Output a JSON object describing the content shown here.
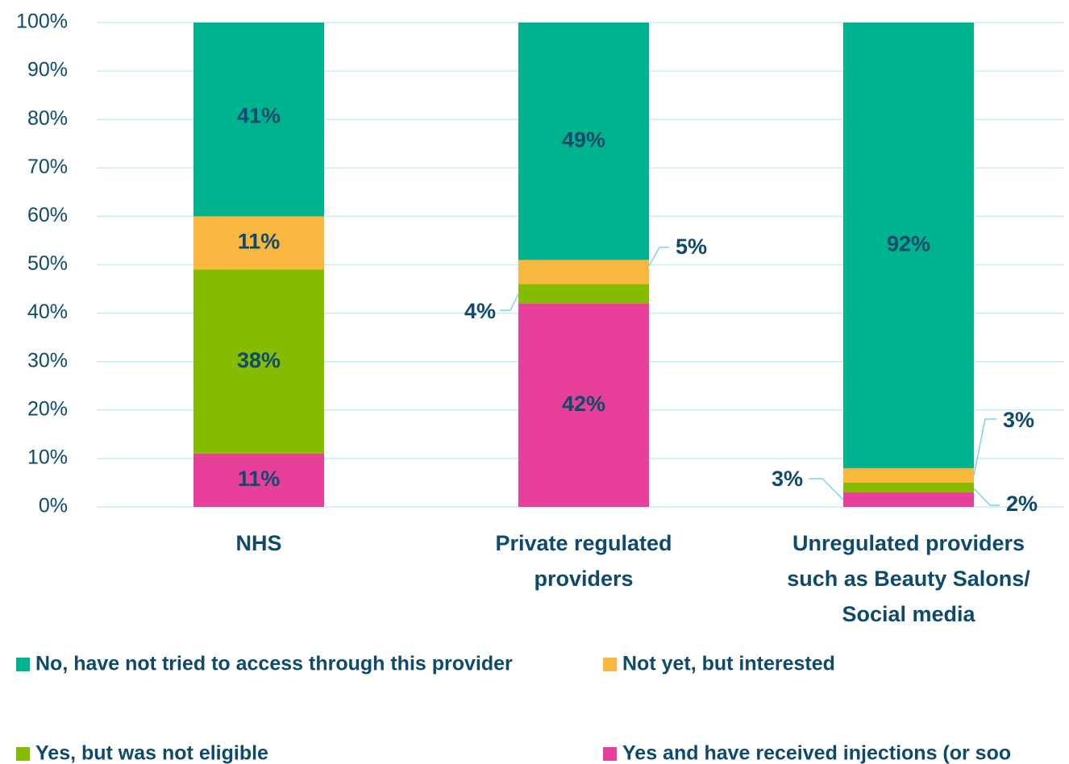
{
  "chart_data": {
    "type": "stacked_bar",
    "categories": [
      [
        "NHS"
      ],
      [
        "Private regulated",
        "providers"
      ],
      [
        "Unregulated providers",
        "such as Beauty Salons/",
        "Social media"
      ]
    ],
    "series": [
      {
        "name": "Yes and have received injections (or soo",
        "color": "#e8409a",
        "values": [
          11,
          42,
          3
        ],
        "value_labels": [
          "11%",
          "42%",
          "3%"
        ]
      },
      {
        "name": "Yes, but was not eligible",
        "color": "#85bc00",
        "values": [
          38,
          4,
          2
        ],
        "value_labels": [
          "38%",
          "4%",
          "2%"
        ]
      },
      {
        "name": "Not yet, but interested",
        "color": "#f9b73f",
        "values": [
          11,
          5,
          3
        ],
        "value_labels": [
          "11%",
          "5%",
          "3%"
        ]
      },
      {
        "name": "No, have not tried to access through this provider",
        "color": "#00b38f",
        "values": [
          41,
          49,
          92
        ],
        "value_labels": [
          "41%",
          "49%",
          "92%"
        ]
      }
    ],
    "ylim": [
      0,
      100
    ],
    "yticks": [
      {
        "value": 0,
        "label": "0%"
      },
      {
        "value": 10,
        "label": "10%"
      },
      {
        "value": 20,
        "label": "20%"
      },
      {
        "value": 30,
        "label": "30%"
      },
      {
        "value": 40,
        "label": "40%"
      },
      {
        "value": 50,
        "label": "50%"
      },
      {
        "value": 60,
        "label": "60%"
      },
      {
        "value": 70,
        "label": "70%"
      },
      {
        "value": 80,
        "label": "80%"
      },
      {
        "value": 90,
        "label": "90%"
      },
      {
        "value": 100,
        "label": "100%"
      }
    ],
    "grid": true,
    "legend": "bottom"
  }
}
